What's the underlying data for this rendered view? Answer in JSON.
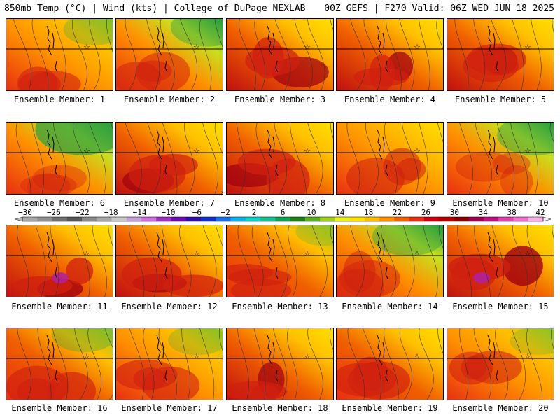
{
  "header": {
    "left": "850mb Temp (°C) | Wind (kts) | College of DuPage NEXLAB",
    "right": "00Z GEFS | F270 Valid: 06Z WED JUN 18 2025"
  },
  "caption_prefix": "Ensemble Member:",
  "members": [
    {
      "id": "1",
      "hot": 0.45,
      "cool": 0.35
    },
    {
      "id": "2",
      "hot": 0.35,
      "cool": 0.55
    },
    {
      "id": "3",
      "hot": 0.75,
      "cool": 0.05
    },
    {
      "id": "4",
      "hot": 0.75,
      "cool": 0.1
    },
    {
      "id": "5",
      "hot": 0.65,
      "cool": 0.0
    },
    {
      "id": "6",
      "hot": 0.05,
      "cool": 0.9
    },
    {
      "id": "7",
      "hot": 0.7,
      "cool": 0.0
    },
    {
      "id": "8",
      "hot": 0.75,
      "cool": 0.0
    },
    {
      "id": "9",
      "hot": 0.45,
      "cool": 0.1
    },
    {
      "id": "10",
      "hot": 0.1,
      "cool": 0.6
    },
    {
      "id": "11",
      "hot": 0.85,
      "cool": 0.0
    },
    {
      "id": "12",
      "hot": 0.7,
      "cool": 0.05
    },
    {
      "id": "13",
      "hot": 0.6,
      "cool": 0.25
    },
    {
      "id": "14",
      "hot": 0.35,
      "cool": 0.55
    },
    {
      "id": "15",
      "hot": 0.9,
      "cool": 0.0
    },
    {
      "id": "16",
      "hot": 0.55,
      "cool": 0.4
    },
    {
      "id": "17",
      "hot": 0.5,
      "cool": 0.3
    },
    {
      "id": "18",
      "hot": 0.7,
      "cool": 0.0
    },
    {
      "id": "19",
      "hot": 0.55,
      "cool": 0.15
    },
    {
      "id": "20",
      "hot": 0.45,
      "cool": 0.25
    }
  ],
  "color_scale": {
    "tick_labels": [
      "-30",
      "-26",
      "-22",
      "-18",
      "-14",
      "-10",
      "-6",
      "-2",
      "2",
      "6",
      "10",
      "14",
      "18",
      "22",
      "26",
      "30",
      "34",
      "38",
      "42"
    ],
    "colors": [
      "#a8a8a8",
      "#909090",
      "#707070",
      "#585858",
      "#8a8a8a",
      "#a8a8a8",
      "#c8c8c8",
      "#c8a0d8",
      "#d070e0",
      "#a030c0",
      "#6a10a8",
      "#3010a0",
      "#1030c8",
      "#1870e8",
      "#10b0e8",
      "#10d0c8",
      "#18c090",
      "#10a050",
      "#208018",
      "#58b020",
      "#a0d020",
      "#e8f018",
      "#ffe000",
      "#ffc000",
      "#ff9000",
      "#f06000",
      "#e83010",
      "#d00010",
      "#b00000",
      "#880000",
      "#a00050",
      "#c01080",
      "#e040b0",
      "#f070d0",
      "#f8b0e8"
    ]
  }
}
